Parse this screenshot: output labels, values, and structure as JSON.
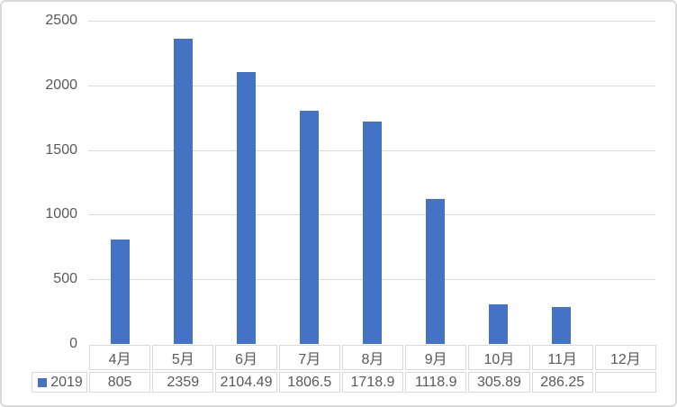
{
  "chart_data": {
    "type": "bar",
    "title": "",
    "xlabel": "",
    "ylabel": "",
    "categories": [
      "4月",
      "5月",
      "6月",
      "7月",
      "8月",
      "9月",
      "10月",
      "11月",
      "12月"
    ],
    "series": [
      {
        "name": "2019",
        "values": [
          805,
          2359,
          2104.49,
          1806.5,
          1718.9,
          1118.9,
          305.89,
          286.25,
          null
        ]
      }
    ],
    "value_labels": [
      "805",
      "2359",
      "2104.49",
      "1806.5",
      "1718.9",
      "1118.9",
      "305.89",
      "286.25",
      ""
    ],
    "yticks": [
      0,
      500,
      1000,
      1500,
      2000,
      2500
    ],
    "ylim": [
      0,
      2500
    ],
    "grid": true,
    "legend": {
      "label": "2019",
      "position": "data-table-left"
    },
    "colors": {
      "bar": "#4472C4",
      "gridline": "#D9D9D9",
      "table_border": "#D9D9D9",
      "text": "#595959",
      "frame_border": "#D9D9D9",
      "background": "#FFFFFF"
    }
  }
}
